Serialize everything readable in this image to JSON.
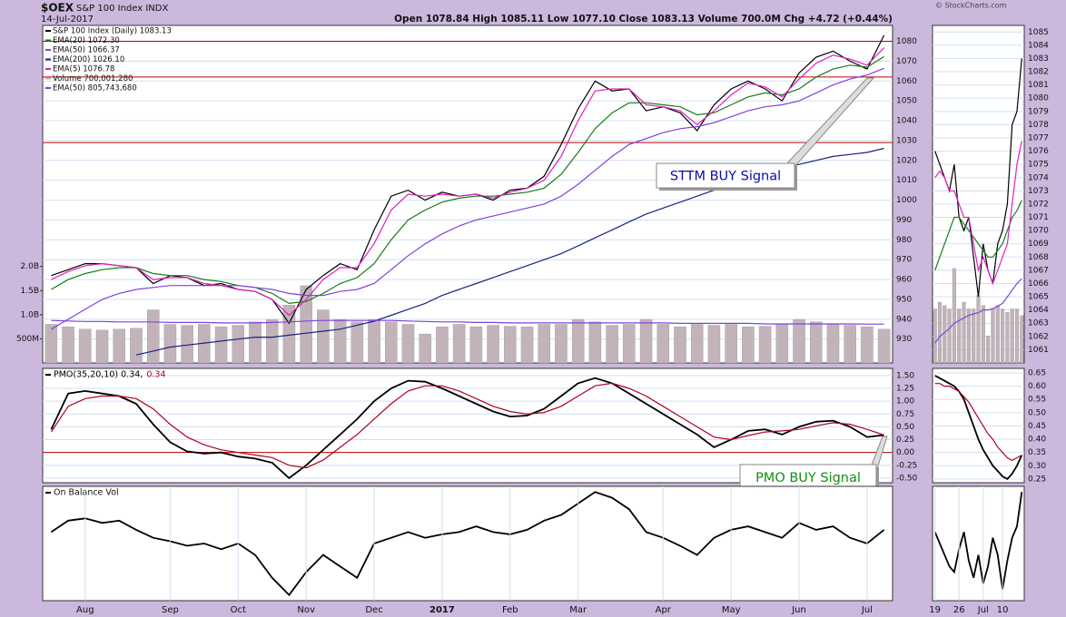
{
  "header": {
    "symbol": "$OEX",
    "name": "S&P 100 Index INDX",
    "date": "14-Jul-2017",
    "quote": "Open 1078.84 High 1085.11 Low 1077.10 Close 1083.13 Volume 700.0M Chg +4.72 (+0.44%)",
    "credit": "© StockCharts.com"
  },
  "chart_data": [
    {
      "type": "line",
      "legend": "top-left",
      "grid": true,
      "ylim": [
        918,
        1088
      ],
      "yticks": [
        930,
        940,
        950,
        960,
        970,
        980,
        990,
        1000,
        1010,
        1020,
        1030,
        1040,
        1050,
        1060,
        1070,
        1080
      ],
      "y2lim": [
        0,
        7000000000.0
      ],
      "y2ticks": [
        {
          "value": 500000000.0,
          "label": "500M"
        },
        {
          "value": 1000000000.0,
          "label": "1.0B"
        },
        {
          "value": 1500000000.0,
          "label": "1.5B"
        },
        {
          "value": 2000000000.0,
          "label": "2.0B"
        }
      ],
      "hlines": [
        1080,
        1062,
        1029
      ],
      "hline_color": "#c00000",
      "annotation": {
        "text": "STTM BUY Signal",
        "color": "#0a0aa0"
      },
      "series": [
        {
          "name": "S&P 100 Index (Daily) 1083.13",
          "color": "#000000",
          "values": [
            962,
            965,
            968,
            968,
            967,
            966,
            958,
            962,
            961,
            957,
            958,
            955,
            954,
            950,
            938,
            955,
            962,
            968,
            965,
            985,
            1002,
            1005,
            1000,
            1004,
            1002,
            1003,
            1000,
            1005,
            1006,
            1012,
            1028,
            1046,
            1060,
            1055,
            1056,
            1045,
            1047,
            1044,
            1035,
            1048,
            1056,
            1060,
            1056,
            1050,
            1064,
            1072,
            1075,
            1070,
            1066,
            1083
          ]
        },
        {
          "name": "EMA(20) 1072.30",
          "color": "#1a7a1a",
          "values": [
            955,
            960,
            963,
            965,
            966,
            966,
            963,
            962,
            962,
            960,
            959,
            957,
            956,
            953,
            948,
            949,
            953,
            958,
            961,
            968,
            980,
            990,
            995,
            999,
            1001,
            1002,
            1002,
            1003,
            1004,
            1006,
            1013,
            1024,
            1036,
            1044,
            1049,
            1049,
            1048,
            1047,
            1043,
            1044,
            1048,
            1052,
            1054,
            1053,
            1056,
            1062,
            1066,
            1068,
            1067,
            1072.3
          ]
        },
        {
          "name": "EMA(50) 1066.37",
          "color": "#8040e0",
          "values": [
            935,
            940,
            945,
            950,
            953,
            955,
            956,
            957,
            957,
            957,
            957,
            957,
            956,
            955,
            953,
            952,
            952,
            954,
            955,
            958,
            965,
            972,
            978,
            983,
            987,
            990,
            992,
            994,
            996,
            998,
            1002,
            1008,
            1015,
            1022,
            1028,
            1031,
            1034,
            1036,
            1037,
            1039,
            1042,
            1045,
            1047,
            1048,
            1050,
            1054,
            1058,
            1061,
            1063,
            1066.37
          ]
        },
        {
          "name": "EMA(200) 1026.10",
          "color": "#1a237e",
          "values": [
            null,
            null,
            null,
            null,
            null,
            922,
            924,
            926,
            927,
            928,
            929,
            930,
            931,
            931,
            932,
            933,
            934,
            935,
            937,
            939,
            942,
            945,
            948,
            952,
            955,
            958,
            961,
            964,
            967,
            970,
            973,
            977,
            981,
            985,
            989,
            993,
            996,
            999,
            1002,
            1005,
            1008,
            1011,
            1013,
            1016,
            1018,
            1020,
            1022,
            1023,
            1024,
            1026.1
          ]
        },
        {
          "name": "EMA(5) 1076.78",
          "color": "#e020c0",
          "values": [
            960,
            964,
            967,
            968,
            967,
            966,
            960,
            961,
            961,
            958,
            957,
            955,
            954,
            950,
            942,
            950,
            960,
            966,
            966,
            978,
            995,
            1003,
            1002,
            1003,
            1002,
            1003,
            1001,
            1004,
            1006,
            1010,
            1022,
            1040,
            1055,
            1056,
            1056,
            1048,
            1047,
            1045,
            1038,
            1045,
            1053,
            1059,
            1057,
            1052,
            1061,
            1069,
            1073,
            1071,
            1068,
            1076.78
          ]
        },
        {
          "name": "Volume 700,001,280",
          "color": "#c2b3bb",
          "type": "bar",
          "axis": "y2",
          "values": [
            800000000.0,
            750000000.0,
            700000000.0,
            680000000.0,
            700000000.0,
            720000000.0,
            1100000000.0,
            800000000.0,
            780000000.0,
            800000000.0,
            750000000.0,
            780000000.0,
            850000000.0,
            900000000.0,
            1200000000.0,
            1600000000.0,
            1100000000.0,
            900000000.0,
            850000000.0,
            900000000.0,
            850000000.0,
            800000000.0,
            600000000.0,
            750000000.0,
            800000000.0,
            750000000.0,
            780000000.0,
            760000000.0,
            750000000.0,
            800000000.0,
            800000000.0,
            900000000.0,
            850000000.0,
            780000000.0,
            800000000.0,
            900000000.0,
            800000000.0,
            750000000.0,
            800000000.0,
            780000000.0,
            800000000.0,
            750000000.0,
            760000000.0,
            800000000.0,
            900000000.0,
            850000000.0,
            800000000.0,
            780000000.0,
            750000000.0,
            700001280
          ]
        },
        {
          "name": "EMA(50) 805,743,680",
          "color": "#8040e0",
          "axis": "y2",
          "values": [
            880000000.0,
            870000000.0,
            860000000.0,
            860000000.0,
            850000000.0,
            850000000.0,
            850000000.0,
            840000000.0,
            840000000.0,
            840000000.0,
            830000000.0,
            830000000.0,
            830000000.0,
            840000000.0,
            850000000.0,
            870000000.0,
            880000000.0,
            880000000.0,
            880000000.0,
            880000000.0,
            880000000.0,
            870000000.0,
            860000000.0,
            850000000.0,
            850000000.0,
            840000000.0,
            840000000.0,
            830000000.0,
            830000000.0,
            830000000.0,
            830000000.0,
            830000000.0,
            830000000.0,
            830000000.0,
            830000000.0,
            830000000.0,
            830000000.0,
            820000000.0,
            820000000.0,
            820000000.0,
            820000000.0,
            820000000.0,
            810000000.0,
            810000000.0,
            810000000.0,
            810000000.0,
            810000000.0,
            810000000.0,
            806000000.0,
            805743680
          ]
        }
      ]
    },
    {
      "type": "line",
      "legend": "top-left",
      "grid": true,
      "ylim": [
        -0.59,
        1.64
      ],
      "yticks": [
        {
          "value": 1.5,
          "label": "1.50"
        },
        {
          "value": 1.25,
          "label": "1.25"
        },
        {
          "value": 1,
          "label": "1.00"
        },
        {
          "value": 0.75,
          "label": "0.75"
        },
        {
          "value": 0.5,
          "label": "0.50"
        },
        {
          "value": 0.25,
          "label": "0.25"
        },
        {
          "value": 0,
          "label": "0.00"
        },
        {
          "value": -0.25,
          "label": "-0.25"
        },
        {
          "value": -0.5,
          "label": "-0.50"
        }
      ],
      "hlines": [
        0
      ],
      "hline_color": "#c00000",
      "annotation": {
        "text": "PMO BUY Signal",
        "color": "#109010"
      },
      "series": [
        {
          "name": "PMO(35,20,10) 0.34,",
          "color": "#000000",
          "values": [
            0.45,
            1.15,
            1.2,
            1.15,
            1.1,
            0.95,
            0.55,
            0.2,
            0.02,
            -0.02,
            0,
            -0.08,
            -0.12,
            -0.2,
            -0.5,
            -0.25,
            0.05,
            0.35,
            0.65,
            1,
            1.25,
            1.4,
            1.38,
            1.25,
            1.1,
            0.95,
            0.8,
            0.7,
            0.72,
            0.85,
            1.1,
            1.35,
            1.45,
            1.35,
            1.15,
            0.95,
            0.75,
            0.55,
            0.35,
            0.1,
            0.25,
            0.42,
            0.45,
            0.35,
            0.5,
            0.6,
            0.62,
            0.5,
            0.3,
            0.34
          ]
        },
        {
          "name": "0.34",
          "color": "#b00020",
          "values": [
            0.4,
            0.9,
            1.05,
            1.1,
            1.1,
            1.05,
            0.85,
            0.55,
            0.3,
            0.15,
            0.05,
            0,
            -0.05,
            -0.1,
            -0.25,
            -0.3,
            -0.15,
            0.1,
            0.35,
            0.65,
            0.95,
            1.2,
            1.3,
            1.3,
            1.2,
            1.05,
            0.9,
            0.8,
            0.75,
            0.78,
            0.9,
            1.1,
            1.3,
            1.35,
            1.25,
            1.1,
            0.9,
            0.7,
            0.5,
            0.3,
            0.25,
            0.33,
            0.4,
            0.42,
            0.45,
            0.52,
            0.58,
            0.55,
            0.45,
            0.34
          ]
        }
      ]
    },
    {
      "type": "line",
      "title": "On Balance Vol",
      "grid": true,
      "ylim": [
        0,
        100
      ],
      "categories": [
        null,
        null,
        "Aug",
        null,
        null,
        null,
        null,
        "Sep",
        null,
        null,
        null,
        "Oct",
        null,
        null,
        null,
        "Nov",
        null,
        null,
        null,
        "Dec",
        null,
        null,
        null,
        "2017",
        null,
        null,
        null,
        "Feb",
        null,
        null,
        null,
        "Mar",
        null,
        null,
        null,
        null,
        "Apr",
        null,
        null,
        null,
        "May",
        null,
        null,
        null,
        "Jun",
        null,
        null,
        null,
        "Jul",
        null
      ],
      "series": [
        {
          "color": "#000000",
          "values": [
            60,
            70,
            72,
            68,
            70,
            62,
            55,
            52,
            48,
            50,
            45,
            50,
            40,
            20,
            5,
            25,
            40,
            30,
            20,
            50,
            55,
            60,
            55,
            58,
            60,
            65,
            60,
            58,
            62,
            70,
            75,
            85,
            95,
            90,
            80,
            60,
            55,
            48,
            40,
            55,
            62,
            65,
            60,
            55,
            68,
            62,
            65,
            55,
            50,
            62
          ]
        }
      ]
    },
    {
      "type": "line",
      "grid": true,
      "ylim": [
        1060,
        1085.5
      ],
      "yticks": [
        1061,
        1062,
        1063,
        1064,
        1065,
        1066,
        1067,
        1068,
        1069,
        1070,
        1071,
        1072,
        1073,
        1074,
        1075,
        1076,
        1077,
        1078,
        1079,
        1080,
        1081,
        1082,
        1083,
        1084,
        1085
      ],
      "y2lim": [
        0,
        5000000000.0
      ],
      "series": [
        {
          "color": "#c2b3bb",
          "type": "bar",
          "axis": "y2",
          "values": [
            800000000.0,
            900000000.0,
            850000000.0,
            800000000.0,
            1400000000.0,
            800000000.0,
            900000000.0,
            800000000.0,
            800000000.0,
            1000000000.0,
            850000000.0,
            400000000.0,
            800000000.0,
            850000000.0,
            800000000.0,
            750000000.0,
            800000000.0,
            800000000.0,
            700001280
          ]
        },
        {
          "color": "#000000",
          "values": [
            1076,
            1075,
            1074,
            1073,
            1075,
            1071,
            1070,
            1071,
            1068,
            1065,
            1069,
            1067,
            1066,
            1069,
            1070,
            1072,
            1078,
            1079,
            1083
          ]
        },
        {
          "color": "#1a7a1a",
          "values": [
            1067,
            1068,
            1069,
            1070,
            1071,
            1071,
            1070.5,
            1070,
            1069.5,
            1069,
            1068.5,
            1068,
            1068,
            1068.5,
            1069,
            1070,
            1071,
            1071.5,
            1072.3
          ]
        },
        {
          "color": "#8040e0",
          "values": [
            1061.5,
            1062,
            1062.3,
            1062.6,
            1063,
            1063.2,
            1063.4,
            1063.6,
            1063.7,
            1063.8,
            1064,
            1064,
            1064.1,
            1064.3,
            1064.5,
            1065,
            1065.5,
            1066,
            1066.37
          ]
        },
        {
          "color": "#e020c0",
          "values": [
            1074,
            1074.5,
            1074,
            1073,
            1073,
            1072,
            1071,
            1071,
            1069,
            1067,
            1068,
            1067,
            1066,
            1067,
            1068,
            1069,
            1072,
            1075,
            1076.78
          ]
        }
      ]
    },
    {
      "type": "line",
      "grid": true,
      "ylim": [
        0.236,
        0.667
      ],
      "yticks": [
        0.65,
        {
          "value": 0.6,
          "label": "0.60"
        },
        0.55,
        {
          "value": 0.5,
          "label": "0.50"
        },
        0.45,
        {
          "value": 0.4,
          "label": "0.40"
        },
        0.35,
        {
          "value": 0.3,
          "label": "0.30"
        },
        0.25
      ],
      "series": [
        {
          "color": "#000000",
          "values": [
            0.64,
            0.63,
            0.62,
            0.61,
            0.6,
            0.58,
            0.55,
            0.5,
            0.45,
            0.4,
            0.36,
            0.33,
            0.3,
            0.28,
            0.26,
            0.25,
            0.27,
            0.3,
            0.34
          ]
        },
        {
          "color": "#b00020",
          "values": [
            0.61,
            0.61,
            0.6,
            0.6,
            0.59,
            0.58,
            0.56,
            0.54,
            0.51,
            0.48,
            0.45,
            0.42,
            0.4,
            0.37,
            0.35,
            0.33,
            0.32,
            0.33,
            0.34
          ]
        }
      ]
    },
    {
      "type": "line",
      "grid": true,
      "ylim": [
        0,
        100
      ],
      "categories": [
        "19",
        null,
        null,
        null,
        null,
        "26",
        null,
        null,
        null,
        null,
        "Jul",
        null,
        null,
        null,
        "10",
        null,
        null,
        null,
        null
      ],
      "series": [
        {
          "color": "#000000",
          "values": [
            60,
            50,
            40,
            30,
            25,
            45,
            60,
            35,
            20,
            40,
            15,
            30,
            55,
            40,
            10,
            35,
            55,
            65,
            95
          ]
        }
      ]
    }
  ]
}
